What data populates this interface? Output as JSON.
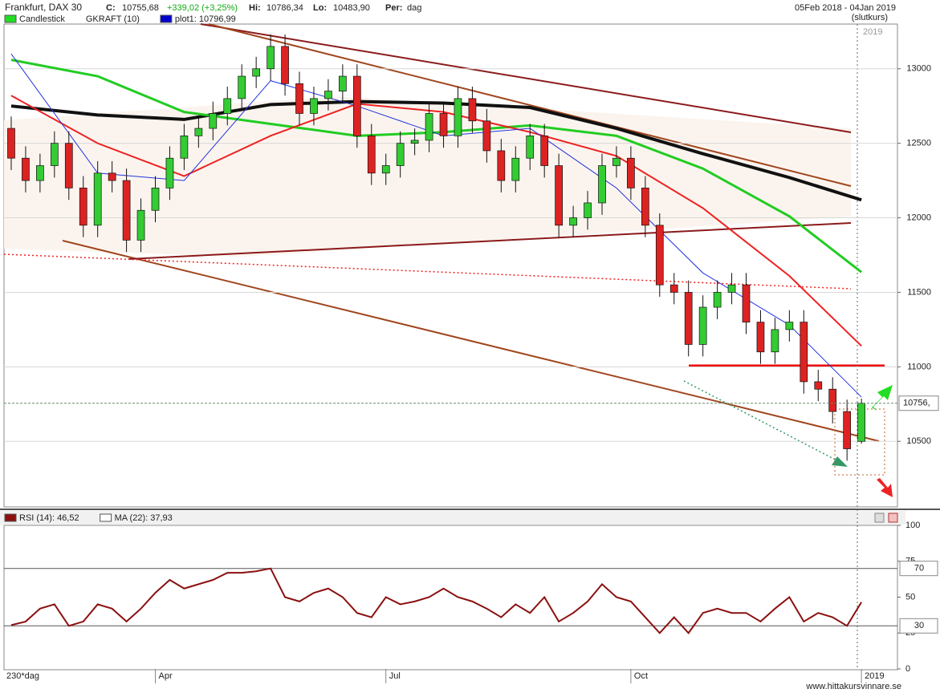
{
  "header": {
    "instrument": "Frankfurt, DAX 30",
    "close_label": "C:",
    "close": "10755,68",
    "change": "+339,02 (+3,25%)",
    "high_label": "Hi:",
    "high": "10786,34",
    "low_label": "Lo:",
    "low": "10483,90",
    "period_label": "Per:",
    "period": "dag",
    "range": "05Feb 2018 - 04Jan 2019",
    "price_kind": "(slutkurs)",
    "watermark": "www.hittakursvinnare.se"
  },
  "chart_data": [
    {
      "type": "candlestick",
      "legend": [
        "Candlestick",
        "GKRAFT (10)",
        "plot1: 10796,99"
      ],
      "legend_colors": [
        "#22dd22",
        null,
        "#0000cc"
      ],
      "year_marker": "2019",
      "x_note": "230*dag",
      "last_label": "10756,",
      "up_color": "#33cc33",
      "down_color": "#dd2222",
      "open": [
        12600,
        12400,
        12250,
        12350,
        12500,
        12200,
        11950,
        12300,
        12250,
        11850,
        12050,
        12200,
        12400,
        12550,
        12600,
        12700,
        12800,
        12950,
        13000,
        13150,
        12900,
        12700,
        12800,
        12850,
        12950,
        12550,
        12300,
        12350,
        12500,
        12520,
        12700,
        12550,
        12800,
        12650,
        12450,
        12250,
        12400,
        12550,
        12350,
        11950,
        12000,
        12100,
        12350,
        12400,
        12200,
        11950,
        11550,
        11500,
        11150,
        11400,
        11500,
        11550,
        11300,
        11100,
        11250,
        11300,
        10900,
        10850,
        10700,
        10500
      ],
      "high": [
        12680,
        12480,
        12430,
        12580,
        12580,
        12280,
        12380,
        12380,
        12330,
        12130,
        12280,
        12480,
        12630,
        12680,
        12780,
        12880,
        13030,
        13080,
        13230,
        13230,
        12980,
        12880,
        12930,
        13030,
        13030,
        12630,
        12430,
        12580,
        12600,
        12780,
        12780,
        12880,
        12880,
        12730,
        12530,
        12480,
        12630,
        12630,
        12430,
        12080,
        12180,
        12430,
        12480,
        12480,
        12280,
        12030,
        11630,
        11580,
        11480,
        11580,
        11630,
        11630,
        11380,
        11330,
        11380,
        11380,
        10980,
        10930,
        10780,
        10786.34
      ],
      "low": [
        12320,
        12170,
        12170,
        12270,
        12120,
        11870,
        11870,
        12170,
        11770,
        11770,
        11970,
        12120,
        12320,
        12470,
        12520,
        12620,
        12720,
        12870,
        12920,
        12820,
        12620,
        12620,
        12720,
        12770,
        12470,
        12220,
        12220,
        12270,
        12420,
        12440,
        12470,
        12470,
        12570,
        12370,
        12170,
        12170,
        12320,
        12270,
        11870,
        11870,
        11920,
        12020,
        12270,
        12120,
        11870,
        11470,
        11420,
        11070,
        11070,
        11320,
        11420,
        11220,
        11020,
        11020,
        11170,
        10820,
        10770,
        10620,
        10370,
        10483.9
      ],
      "close": [
        12400,
        12250,
        12350,
        12500,
        12200,
        11950,
        12300,
        12250,
        11850,
        12050,
        12200,
        12400,
        12550,
        12600,
        12700,
        12800,
        12950,
        13000,
        13150,
        12900,
        12700,
        12800,
        12850,
        12950,
        12550,
        12300,
        12350,
        12500,
        12520,
        12700,
        12550,
        12800,
        12650,
        12450,
        12250,
        12400,
        12550,
        12350,
        11950,
        12000,
        12100,
        12350,
        12400,
        12200,
        11950,
        11550,
        11500,
        11150,
        11400,
        11500,
        11550,
        11300,
        11100,
        11250,
        11300,
        10900,
        10850,
        10700,
        10450,
        10755.68
      ],
      "series": [
        {
          "color": "#111111",
          "width": 4,
          "x": [
            0,
            6,
            12,
            18,
            24,
            30,
            36,
            42,
            48,
            54,
            59
          ],
          "values": [
            12750,
            12690,
            12660,
            12760,
            12780,
            12770,
            12740,
            12600,
            12430,
            12270,
            12120
          ]
        },
        {
          "color": "#22cc22",
          "width": 3,
          "x": [
            0,
            6,
            12,
            18,
            24,
            30,
            36,
            42,
            48,
            54,
            59
          ],
          "values": [
            13060,
            12950,
            12710,
            12630,
            12550,
            12575,
            12620,
            12550,
            12330,
            12010,
            11635
          ]
        },
        {
          "color": "#ee2222",
          "width": 2,
          "x": [
            0,
            6,
            12,
            18,
            24,
            30,
            36,
            42,
            48,
            54,
            59
          ],
          "values": [
            12820,
            12500,
            12280,
            12550,
            12765,
            12710,
            12575,
            12415,
            12065,
            11610,
            11140
          ]
        },
        {
          "color": "#2233dd",
          "width": 1,
          "x": [
            0,
            6,
            12,
            18,
            24,
            30,
            36,
            42,
            48,
            54,
            59
          ],
          "values": [
            13100,
            12300,
            12250,
            12920,
            12750,
            12550,
            12600,
            12200,
            11630,
            11280,
            10796.99
          ]
        }
      ],
      "xlim": [
        -0.5,
        61.5
      ],
      "xticks": [
        {
          "value": 10,
          "label": "Apr"
        },
        {
          "value": 26,
          "label": "Jul"
        },
        {
          "value": 43,
          "label": "Oct"
        },
        {
          "value": 59,
          "label": "2019"
        }
      ],
      "ylim": [
        10060,
        13300
      ],
      "yticks": [
        10500,
        11000,
        11500,
        12000,
        12500,
        13000
      ],
      "grid": true
    },
    {
      "type": "line",
      "legend": [
        "RSI (14): 46,52",
        "MA (22): 37,93"
      ],
      "legend_colors": [
        "#8b1010",
        "#ffffff"
      ],
      "color": "#8b1010",
      "values": [
        30.5,
        33,
        42,
        45,
        30,
        33,
        45,
        42,
        33,
        42,
        53,
        62,
        56,
        59,
        62,
        67,
        67,
        68,
        70,
        50,
        47,
        53,
        56,
        50,
        39,
        36,
        50,
        45,
        47,
        50,
        56,
        50,
        47,
        42,
        36,
        45,
        39,
        50,
        33,
        39,
        47,
        59,
        50,
        47,
        36,
        25,
        36,
        25,
        39,
        42,
        39,
        39,
        33,
        42,
        50,
        33,
        39,
        36,
        30,
        46.52
      ],
      "levels": [
        70,
        30
      ],
      "xlim": [
        -0.5,
        61.5
      ],
      "ylim": [
        0,
        100
      ],
      "yticks": [
        0,
        25,
        50,
        75,
        100
      ]
    }
  ]
}
